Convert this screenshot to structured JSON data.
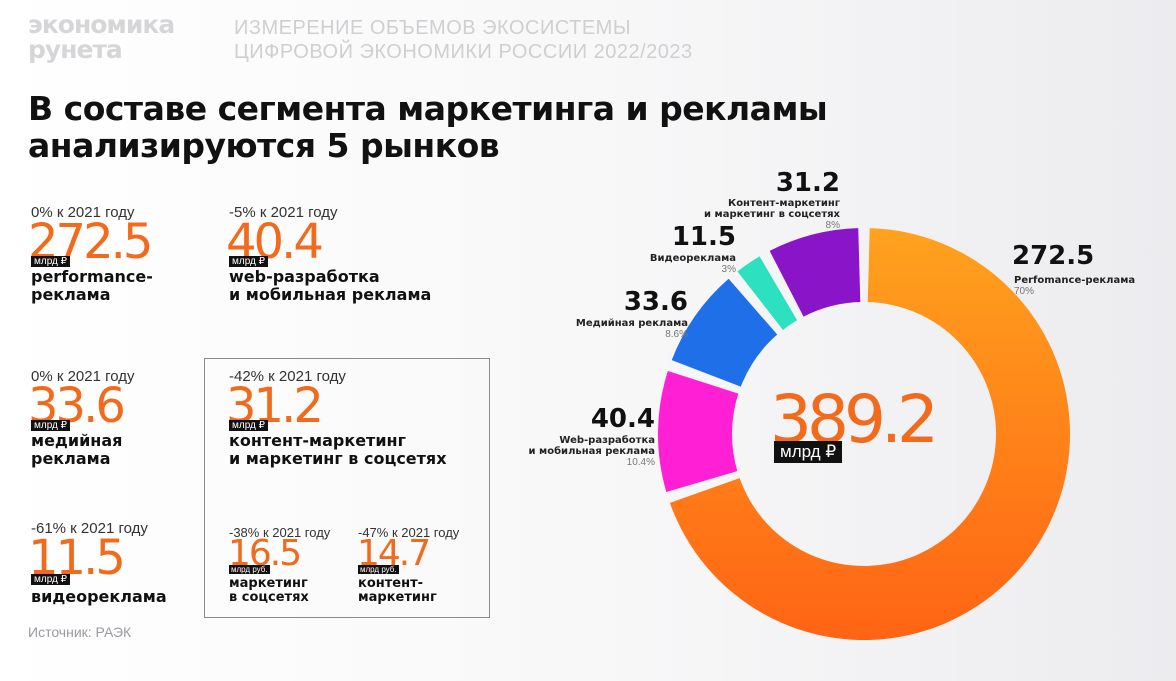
{
  "header": {
    "logo_line1": "экономика",
    "logo_line2": "рунета",
    "subtitle_line1": "ИЗМЕРЕНИЕ ОБЪЕМОВ ЭКОСИСТЕМЫ",
    "subtitle_line2": "ЦИФРОВОЙ ЭКОНОМИКИ РОССИИ 2022/2023"
  },
  "title_line1": "В составе сегмента маркетинга и рекламы",
  "title_line2": "анализируются 5 рынков",
  "markets": {
    "performance": {
      "delta": "0% к 2021 году",
      "value": "272.5",
      "unit": "млрд ₽",
      "label_line1": "performance-",
      "label_line2": "реклама"
    },
    "web": {
      "delta": "-5% к 2021 году",
      "value": "40.4",
      "unit": "млрд ₽",
      "label_line1": "web-разработка",
      "label_line2": "и мобильная реклама"
    },
    "media": {
      "delta": "0% к 2021 году",
      "value": "33.6",
      "unit": "млрд ₽",
      "label_line1": "медийная",
      "label_line2": "реклама"
    },
    "content_social": {
      "delta": "-42% к 2021 году",
      "value": "31.2",
      "unit": "млрд ₽",
      "label_line1": "контент-маркетинг",
      "label_line2": "и маркетинг в соцсетях"
    },
    "video": {
      "delta": "-61% к 2021 году",
      "value": "11.5",
      "unit": "млрд ₽",
      "label_line1": "видеореклама"
    },
    "social": {
      "delta": "-38% к 2021 году",
      "value": "16.5",
      "unit": "млрд руб.",
      "label_line1": "маркетинг",
      "label_line2": "в соцсетях"
    },
    "content": {
      "delta": "-47% к 2021 году",
      "value": "14.7",
      "unit": "млрд руб.",
      "label_line1": "контент-",
      "label_line2": "маркетинг"
    }
  },
  "source": "Источник: РАЭК",
  "colors": {
    "accent": "#f26a1b",
    "performance": "#f7931e",
    "web": "#ff1fd5",
    "media": "#1e6fe8",
    "video": "#2ce0c0",
    "content_social": "#8a14c8"
  },
  "chart_data": {
    "type": "pie",
    "variant": "donut",
    "total": "389.2",
    "total_unit": "млрд ₽",
    "series": [
      {
        "key": "performance",
        "value": 272.5,
        "label": "272.5",
        "name": "Perfomance-реклама",
        "name_line2": "",
        "pct": "70%",
        "color": "#f7931e"
      },
      {
        "key": "web",
        "value": 40.4,
        "label": "40.4",
        "name": "Web-рaзработка",
        "name_line2": "и мобильная реклама",
        "pct": "10.4%",
        "color": "#ff1fd5"
      },
      {
        "key": "media",
        "value": 33.6,
        "label": "33.6",
        "name": "Медийная реклама",
        "name_line2": "",
        "pct": "8.6%",
        "color": "#1e6fe8"
      },
      {
        "key": "video",
        "value": 11.5,
        "label": "11.5",
        "name": "Видеореклама",
        "name_line2": "",
        "pct": "3%",
        "color": "#2ce0c0"
      },
      {
        "key": "content_social",
        "value": 31.2,
        "label": "31.2",
        "name": "Контент-маркетинг",
        "name_line2": "и маркетинг в соцсетях",
        "pct": "8%",
        "color": "#8a14c8"
      }
    ]
  }
}
